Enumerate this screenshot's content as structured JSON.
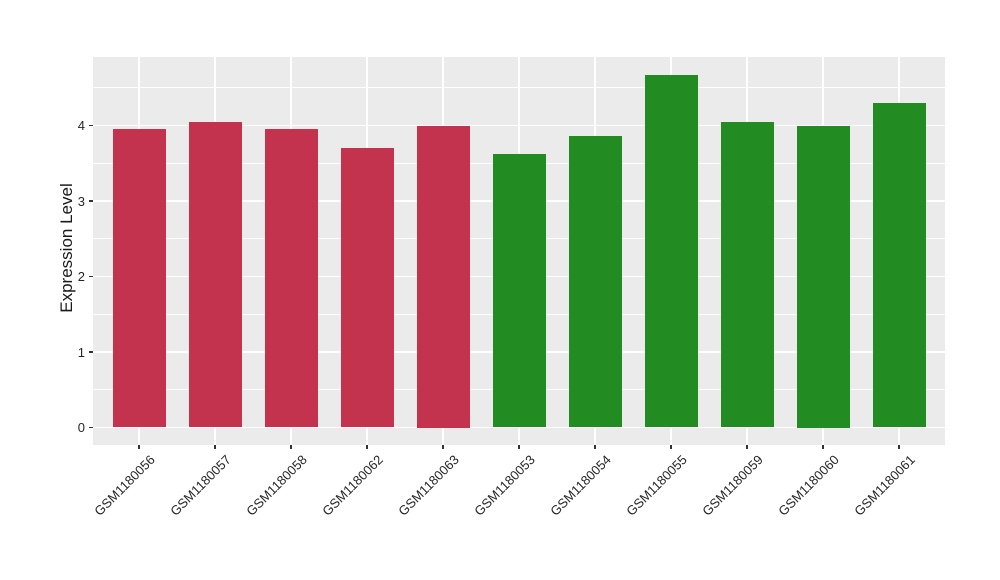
{
  "chart_data": {
    "type": "bar",
    "title": "",
    "xlabel": "",
    "ylabel": "Expression Level",
    "categories": [
      "GSM1180056",
      "GSM1180057",
      "GSM1180058",
      "GSM1180062",
      "GSM1180063",
      "GSM1180053",
      "GSM1180054",
      "GSM1180055",
      "GSM1180059",
      "GSM1180060",
      "GSM1180061"
    ],
    "values": [
      3.95,
      4.05,
      3.95,
      3.7,
      4.0,
      3.62,
      3.86,
      4.67,
      4.05,
      4.0,
      4.3
    ],
    "bar_colors": [
      "#C3334D",
      "#C3334D",
      "#C3334D",
      "#C3334D",
      "#C3334D",
      "#228B22",
      "#228B22",
      "#228B22",
      "#228B22",
      "#228B22",
      "#228B22"
    ],
    "yticks": [
      0,
      1,
      2,
      3,
      4
    ],
    "y_minor_ticks": [
      0.5,
      1.5,
      2.5,
      3.5,
      4.5
    ],
    "ylim": [
      -0.23,
      4.9
    ],
    "grid": "white major and minor horizontal lines, white vertical lines at category centers, on gray panel",
    "legend": "none"
  },
  "colors": {
    "panel_background": "#EBEBEB",
    "gridline": "#FFFFFF",
    "bar_red": "#C3334D",
    "bar_green": "#228B22",
    "axis_text": "#262626",
    "tick_mark": "#333333"
  }
}
